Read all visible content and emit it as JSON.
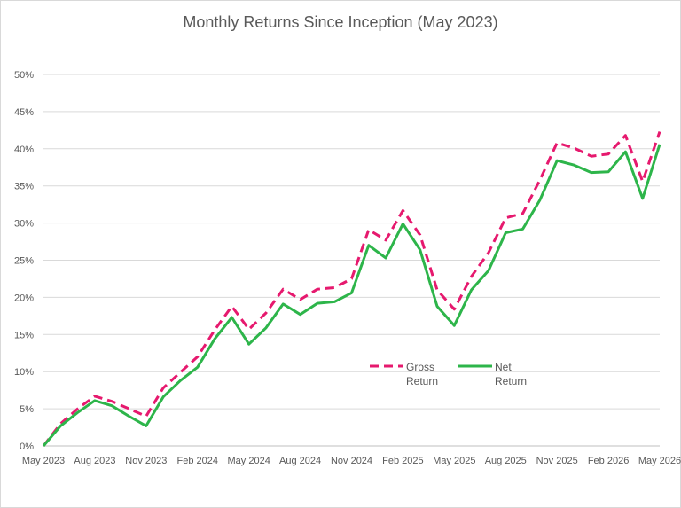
{
  "chart_data": {
    "type": "line",
    "title": "Monthly Returns Since Inception (May 2023)",
    "xlabel": "",
    "ylabel": "",
    "ylim": [
      0,
      0.5
    ],
    "y_ticks": [
      "0%",
      "5%",
      "10%",
      "15%",
      "20%",
      "25%",
      "30%",
      "35%",
      "40%",
      "45%",
      "50%"
    ],
    "x_tick_labels": [
      "May 2023",
      "Aug 2023",
      "Nov 2023",
      "Feb 2024",
      "May 2024",
      "Aug 2024",
      "Nov 2024",
      "Feb 2025",
      "May 2025",
      "Aug 2025",
      "Nov 2025",
      "Feb 2026",
      "May 2026"
    ],
    "x": [
      "May 2023",
      "Jun 2023",
      "Jul 2023",
      "Aug 2023",
      "Sep 2023",
      "Oct 2023",
      "Nov 2023",
      "Dec 2023",
      "Jan 2024",
      "Feb 2024",
      "Mar 2024",
      "Apr 2024",
      "May 2024",
      "Jun 2024",
      "Jul 2024",
      "Aug 2024",
      "Sep 2024",
      "Oct 2024",
      "Nov 2024",
      "Dec 2024",
      "Jan 2025",
      "Feb 2025",
      "Mar 2025",
      "Apr 2025",
      "May 2025",
      "Jun 2025",
      "Jul 2025",
      "Aug 2025",
      "Sep 2025",
      "Oct 2025",
      "Nov 2025",
      "Dec 2025",
      "Jan 2026",
      "Feb 2026",
      "Mar 2026",
      "Apr 2026",
      "May 2026"
    ],
    "grid": true,
    "legend_position": "center-right",
    "series": [
      {
        "name": "Gross Return",
        "color": "#e6196e",
        "style": "dashed",
        "values": [
          0.0,
          0.03,
          0.05,
          0.067,
          0.06,
          0.05,
          0.04,
          0.078,
          0.099,
          0.12,
          0.156,
          0.188,
          0.157,
          0.179,
          0.211,
          0.197,
          0.211,
          0.213,
          0.225,
          0.291,
          0.277,
          0.317,
          0.284,
          0.21,
          0.184,
          0.228,
          0.26,
          0.307,
          0.313,
          0.358,
          0.408,
          0.401,
          0.39,
          0.393,
          0.418,
          0.356,
          0.423
        ]
      },
      {
        "name": "Net Return",
        "color": "#2db54a",
        "style": "solid",
        "values": [
          0.0,
          0.027,
          0.045,
          0.061,
          0.054,
          0.04,
          0.027,
          0.066,
          0.088,
          0.106,
          0.144,
          0.173,
          0.137,
          0.159,
          0.191,
          0.177,
          0.192,
          0.194,
          0.206,
          0.27,
          0.253,
          0.299,
          0.264,
          0.188,
          0.162,
          0.21,
          0.236,
          0.287,
          0.292,
          0.331,
          0.384,
          0.378,
          0.368,
          0.369,
          0.396,
          0.333,
          0.406
        ]
      }
    ],
    "legend": {
      "gross_line1": "Gross",
      "gross_line2": "Return",
      "net_line1": "Net",
      "net_line2": "Return"
    }
  }
}
